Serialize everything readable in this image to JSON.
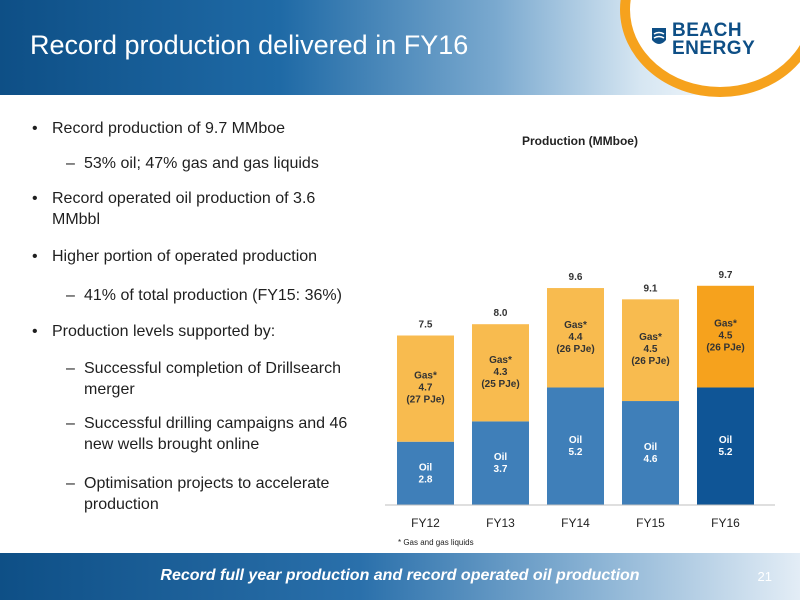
{
  "slide": {
    "title": "Record production delivered in FY16",
    "page_number": "21",
    "footer": "Record full year production and record operated oil production"
  },
  "logo": {
    "line1": "BEACH",
    "line2": "ENERGY"
  },
  "bullets": [
    {
      "level": 1,
      "text": "Record production of 9.7 MMboe"
    },
    {
      "level": 2,
      "text": "53% oil; 47% gas and gas liquids"
    },
    {
      "level": 1,
      "text": "Record operated oil production of 3.6 MMbbl"
    },
    {
      "level": 1,
      "text": "Higher portion of operated production"
    },
    {
      "level": 2,
      "text": "41% of total production (FY15: 36%)"
    },
    {
      "level": 1,
      "text": "Production levels supported by:"
    },
    {
      "level": 2,
      "text": "Successful completion of Drillsearch merger"
    },
    {
      "level": 2,
      "text": "Successful drilling campaigns and 46 new wells brought online"
    },
    {
      "level": 2,
      "text": "Optimisation projects to accelerate production"
    }
  ],
  "colors": {
    "oil": "#3f7fb9",
    "oil_highlight": "#0f5596",
    "gas": "#f8bb4f",
    "gas_highlight": "#f6a21d"
  },
  "chart_data": {
    "type": "bar",
    "stacked": true,
    "title": "Production (MMboe)",
    "categories": [
      "FY12",
      "FY13",
      "FY14",
      "FY15",
      "FY16"
    ],
    "series": [
      {
        "key": "oil",
        "values": [
          2.8,
          3.7,
          5.2,
          4.6,
          5.2
        ],
        "labels": [
          "Oil",
          "Oil",
          "Oil",
          "Oil",
          "Oil"
        ]
      },
      {
        "key": "gas",
        "values": [
          4.7,
          4.3,
          4.4,
          4.5,
          4.5
        ],
        "labels": [
          "Gas*",
          "Gas*",
          "Gas*",
          "Gas*",
          "Gas*"
        ],
        "sublabels": [
          "(27 PJe)",
          "(25 PJe)",
          "(26 PJe)",
          "(26 PJe)",
          "(26 PJe)"
        ]
      }
    ],
    "totals": [
      "7.5",
      "8.0",
      "9.6",
      "9.1",
      "9.7"
    ],
    "highlight_category": "FY16",
    "footnote": "* Gas and gas liquids",
    "ylim": [
      0,
      10
    ]
  }
}
